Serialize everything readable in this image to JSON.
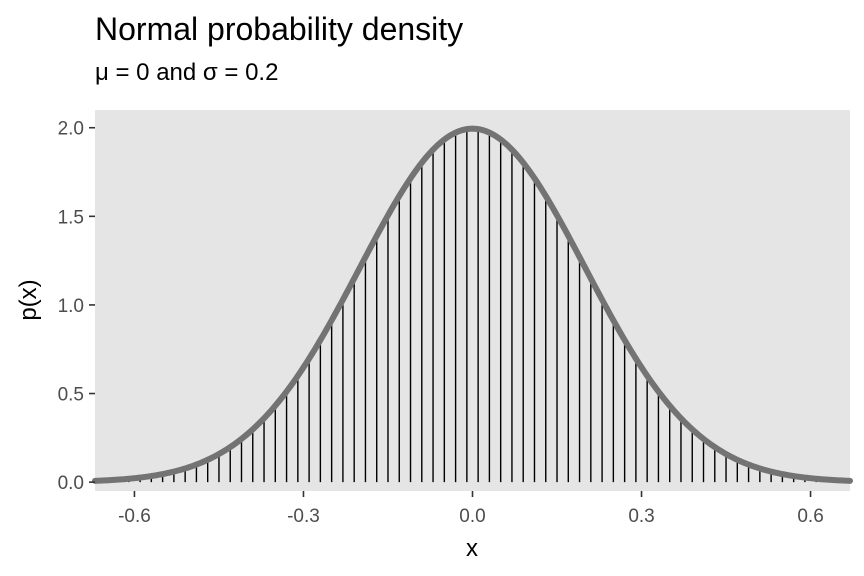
{
  "chart_data": {
    "type": "line",
    "title": "Normal probability density",
    "subtitle": "μ = 0 and σ = 0.2",
    "xlabel": "x",
    "ylabel": "p(x)",
    "mu": 0,
    "sigma": 0.2,
    "xlim": [
      -0.67,
      0.67
    ],
    "ylim": [
      -0.05,
      2.1
    ],
    "x_ticks": [
      -0.6,
      -0.3,
      0.0,
      0.3,
      0.6
    ],
    "x_tick_labels": [
      "-0.6",
      "-0.3",
      "0.0",
      "0.3",
      "0.6"
    ],
    "y_ticks": [
      0.0,
      0.5,
      1.0,
      1.5,
      2.0
    ],
    "y_tick_labels": [
      "0.0",
      "0.5",
      "1.0",
      "1.5",
      "2.0"
    ],
    "grid": false,
    "series": [
      {
        "type": "line",
        "x": [
          -0.67,
          -0.65,
          -0.6,
          -0.55,
          -0.5,
          -0.45,
          -0.4,
          -0.35,
          -0.3,
          -0.25,
          -0.2,
          -0.15,
          -0.1,
          -0.05,
          0.0,
          0.05,
          0.1,
          0.15,
          0.2,
          0.25,
          0.3,
          0.35,
          0.4,
          0.45,
          0.5,
          0.55,
          0.6,
          0.65,
          0.67
        ],
        "y": [
          0.0073,
          0.0102,
          0.0222,
          0.0454,
          0.0876,
          0.1587,
          0.27,
          0.4317,
          0.6476,
          0.9132,
          1.2099,
          1.5057,
          1.7603,
          1.9333,
          1.9947,
          1.9333,
          1.7603,
          1.5057,
          1.2099,
          0.9132,
          0.6476,
          0.4317,
          0.27,
          0.1587,
          0.0876,
          0.0454,
          0.0222,
          0.0102,
          0.0073
        ],
        "color": "#737373"
      },
      {
        "type": "lollipop",
        "x_start": -0.67,
        "x_end": 0.67,
        "step": 0.02,
        "color": "#000000"
      }
    ],
    "colors": {
      "panel_background": "#e5e5e5",
      "curve": "#737373",
      "segments": "#000000",
      "tick_marks": "#333333",
      "tick_labels": "#4d4d4d"
    }
  }
}
